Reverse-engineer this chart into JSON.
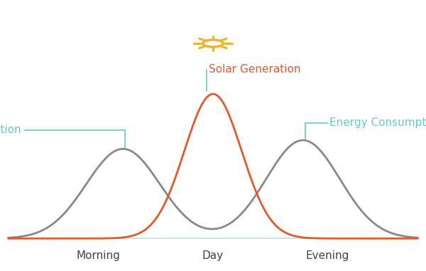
{
  "background_color": "#ffffff",
  "solar_color": "#E05A2B",
  "consumption_color": "#888888",
  "annotation_color": "#6EC6C6",
  "sun_color": "#F0B429",
  "solar_label": "Solar Generation",
  "consumption_label": "Energy Consumption",
  "x_labels": [
    "Morning",
    "Day",
    "Evening"
  ],
  "axis_line_color": "#C8DDE0",
  "label_fontsize": 11,
  "tick_fontsize": 11,
  "solar_mu": 0.5,
  "solar_sigma": 0.07,
  "solar_amp": 1.0,
  "cons_mu1": 0.28,
  "cons_sigma1": 0.09,
  "cons_amp1": 0.62,
  "cons_mu2": 0.72,
  "cons_sigma2": 0.09,
  "cons_amp2": 0.68
}
